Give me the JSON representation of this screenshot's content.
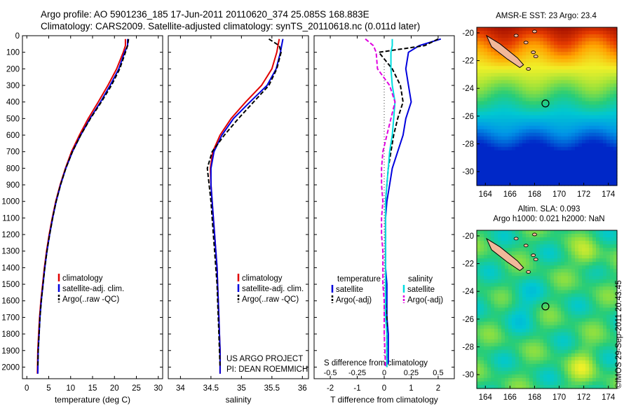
{
  "header": {
    "line1": "Argo profile: AO 5901236_185 17-Jun-2011 20110620_374 25.085S 168.883E",
    "line2": "Climatology: CARS2009. Satellite-adjusted climatology: synTS_20110618.nc (0.011d later)"
  },
  "side_label": "©IMOS 29-Sep-2011 20:43:45",
  "chart_data": [
    {
      "id": "temperature",
      "type": "line",
      "xlabel": "temperature (deg C)",
      "xlim": [
        -1,
        31
      ],
      "ylim": [
        2070,
        0
      ],
      "xticks": [
        0,
        5,
        10,
        15,
        20,
        25,
        30
      ],
      "yticks": [
        0,
        100,
        200,
        300,
        400,
        500,
        600,
        700,
        800,
        900,
        1000,
        1100,
        1200,
        1300,
        1400,
        1500,
        1600,
        1700,
        1800,
        1900,
        2000
      ],
      "legend": [
        "climatology",
        "satellite-adj. clim.",
        "Argo(..raw -QC)"
      ],
      "series": [
        {
          "name": "climatology",
          "color": "#e00000",
          "dash": "none",
          "x": [
            22.5,
            22.5,
            22.0,
            20.5,
            18.5,
            16.3,
            14.0,
            12.0,
            10.2,
            8.8,
            7.6,
            6.6,
            5.8,
            5.1,
            4.5,
            4.0,
            3.6,
            3.2,
            2.9,
            2.7,
            2.5,
            2.4
          ],
          "y": [
            20,
            60,
            100,
            200,
            300,
            400,
            500,
            600,
            700,
            800,
            900,
            1000,
            1100,
            1200,
            1300,
            1400,
            1500,
            1600,
            1700,
            1800,
            1900,
            2040
          ]
        },
        {
          "name": "satellite-adj. clim.",
          "color": "#0000dd",
          "dash": "none",
          "x": [
            23.0,
            23.0,
            22.3,
            21.0,
            19.0,
            16.8,
            14.4,
            12.3,
            10.4,
            8.9,
            7.7,
            6.7,
            5.9,
            5.2,
            4.6,
            4.1,
            3.7,
            3.3,
            3.0,
            2.8,
            2.6,
            2.5
          ],
          "y": [
            20,
            60,
            100,
            200,
            300,
            400,
            500,
            600,
            700,
            800,
            900,
            1000,
            1100,
            1200,
            1300,
            1400,
            1500,
            1600,
            1700,
            1800,
            1900,
            2040
          ]
        },
        {
          "name": "Argo(..raw -QC)",
          "color": "#000000",
          "dash": "6,3",
          "x": [
            23.2,
            23.0,
            22.5,
            21.2,
            19.3,
            17.0,
            14.5,
            12.3,
            10.4,
            8.9,
            7.7,
            6.7,
            5.9,
            5.2,
            4.6,
            4.1,
            3.7,
            3.3,
            3.0,
            2.8,
            2.6,
            2.5
          ],
          "y": [
            20,
            60,
            100,
            200,
            300,
            400,
            500,
            600,
            700,
            800,
            900,
            1000,
            1100,
            1200,
            1300,
            1400,
            1500,
            1600,
            1700,
            1800,
            1900,
            2000
          ]
        }
      ]
    },
    {
      "id": "salinity",
      "type": "line",
      "xlabel": "salinity",
      "xlim": [
        33.8,
        36.1
      ],
      "ylim": [
        2070,
        0
      ],
      "xticks": [
        34,
        34.5,
        35,
        35.5,
        36
      ],
      "legend": [
        "climatology",
        "satellite-adj. clim.",
        "Argo(..raw -QC)"
      ],
      "annotation": [
        "US ARGO PROJECT",
        "PI: DEAN ROEMMICH"
      ],
      "series": [
        {
          "name": "climatology",
          "color": "#e00000",
          "dash": "none",
          "x": [
            35.62,
            35.6,
            35.58,
            35.5,
            35.33,
            35.07,
            34.83,
            34.65,
            34.53,
            34.49,
            34.5,
            34.52,
            34.54,
            34.56,
            34.58,
            34.6,
            34.61,
            34.62,
            34.63,
            34.64,
            34.65,
            34.65
          ],
          "y": [
            20,
            60,
            100,
            200,
            300,
            400,
            500,
            600,
            700,
            800,
            900,
            1000,
            1100,
            1200,
            1300,
            1400,
            1500,
            1600,
            1700,
            1800,
            1900,
            2040
          ]
        },
        {
          "name": "satellite-adj. clim.",
          "color": "#0000dd",
          "dash": "none",
          "x": [
            35.68,
            35.66,
            35.64,
            35.57,
            35.42,
            35.14,
            34.87,
            34.68,
            34.55,
            34.5,
            34.5,
            34.52,
            34.54,
            34.56,
            34.58,
            34.6,
            34.61,
            34.62,
            34.63,
            34.64,
            34.65,
            34.65
          ],
          "y": [
            20,
            60,
            100,
            200,
            300,
            400,
            500,
            600,
            700,
            800,
            900,
            1000,
            1100,
            1200,
            1300,
            1400,
            1500,
            1600,
            1700,
            1800,
            1900,
            2040
          ]
        },
        {
          "name": "Argo(..raw -QC)",
          "color": "#000000",
          "dash": "6,3",
          "x": [
            35.45,
            35.62,
            35.65,
            35.58,
            35.45,
            35.2,
            34.95,
            34.72,
            34.52,
            34.44,
            34.47,
            34.5,
            34.52,
            34.54,
            34.56,
            34.58,
            34.6,
            34.61,
            34.62,
            34.63,
            34.64,
            34.65
          ],
          "y": [
            20,
            60,
            100,
            200,
            300,
            400,
            500,
            600,
            700,
            800,
            900,
            1000,
            1100,
            1200,
            1300,
            1400,
            1500,
            1600,
            1700,
            1800,
            1900,
            2000
          ]
        }
      ]
    },
    {
      "id": "difference",
      "type": "line",
      "xlabel": "T difference from climatology",
      "xlabel_top": "S difference from climatology",
      "xlim": [
        -2.6,
        2.6
      ],
      "ylim": [
        2070,
        0
      ],
      "xticks": [
        -2,
        -1,
        0,
        1,
        2
      ],
      "xtick_labels": [
        "-2",
        "-1",
        "0",
        "1",
        "2"
      ],
      "sticks": [
        "-0.5",
        "-0.25",
        "0",
        "0.25",
        "0.5"
      ],
      "legend_groups": [
        {
          "title": "temperature",
          "items": [
            "satellite",
            "Argo(-adj)"
          ]
        },
        {
          "title": "salinity",
          "items": [
            "satellite",
            "Argo(-adj)"
          ]
        }
      ],
      "series": [
        {
          "name": "temperature satellite",
          "color": "#0000dd",
          "dash": "none",
          "x": [
            2.1,
            1.3,
            0.9,
            0.8,
            0.9,
            1.0,
            0.8,
            0.7,
            0.5,
            0.3,
            0.2,
            0.1,
            0.05,
            0.05,
            0.05,
            0.05,
            0.1,
            0.1,
            0.1,
            0.15,
            0.15
          ],
          "y": [
            20,
            60,
            100,
            200,
            300,
            400,
            500,
            600,
            700,
            800,
            900,
            1000,
            1100,
            1200,
            1300,
            1400,
            1500,
            1600,
            1700,
            1800,
            1980
          ]
        },
        {
          "name": "temperature Argo(-adj)",
          "color": "#000000",
          "dash": "6,3",
          "x": [
            2.0,
            1.5,
            -0.2,
            0.3,
            0.6,
            0.7,
            0.5,
            0.35,
            0.25,
            0.15,
            0.1,
            0.05,
            0.05,
            0.05,
            0.05,
            0.05,
            0.05,
            0.05,
            0.1,
            0.1,
            0.1
          ],
          "y": [
            20,
            60,
            100,
            200,
            300,
            400,
            500,
            600,
            700,
            800,
            900,
            1000,
            1100,
            1200,
            1300,
            1400,
            1500,
            1600,
            1700,
            1800,
            2000
          ]
        },
        {
          "name": "salinity satellite",
          "color": "#00dde0",
          "dash": "none",
          "x": [
            0.3,
            0.3,
            0.25,
            0.25,
            0.3,
            0.4,
            0.35,
            0.3,
            0.2,
            0.15,
            0.1,
            0.05,
            0.05,
            0.05,
            0.05,
            0.05,
            0.05,
            0.05,
            0.05,
            0.1,
            0.1
          ],
          "y": [
            20,
            60,
            100,
            200,
            300,
            400,
            500,
            600,
            700,
            800,
            900,
            1000,
            1100,
            1200,
            1300,
            1400,
            1500,
            1600,
            1700,
            1800,
            2000
          ]
        },
        {
          "name": "salinity Argo(-adj)",
          "color": "#e000e0",
          "dash": "6,3",
          "x": [
            -0.7,
            -0.4,
            -0.3,
            -0.25,
            0.2,
            0.4,
            0.25,
            0.1,
            -0.05,
            -0.1,
            -0.1,
            -0.05,
            -0.1,
            -0.1,
            -0.05,
            -0.05,
            -0.05,
            0.0,
            0.0,
            0.0,
            0.05
          ],
          "y": [
            20,
            60,
            100,
            200,
            300,
            400,
            500,
            600,
            700,
            800,
            900,
            1000,
            1100,
            1200,
            1300,
            1400,
            1500,
            1600,
            1700,
            1800,
            2000
          ]
        }
      ]
    },
    {
      "id": "map_sst",
      "type": "heatmap",
      "title": "AMSR-E SST: 23 Argo: 23.4",
      "xlim": [
        163.3,
        174.7
      ],
      "ylim": [
        -31,
        -19.6
      ],
      "xticks": [
        164,
        166,
        168,
        170,
        172,
        174
      ],
      "yticks": [
        -20,
        -22,
        -24,
        -26,
        -28,
        -30
      ],
      "marker": {
        "lon": 168.883,
        "lat": -25.085
      }
    },
    {
      "id": "map_sla",
      "type": "heatmap",
      "title": "Altim. SLA: 0.093",
      "subtitle": "Argo h1000: 0.021 h2000: NaN",
      "xlim": [
        163.3,
        174.7
      ],
      "ylim": [
        -31,
        -19.6
      ],
      "xticks": [
        164,
        166,
        168,
        170,
        172,
        174
      ],
      "yticks": [
        -20,
        -22,
        -24,
        -26,
        -28,
        -30
      ],
      "marker": {
        "lon": 168.883,
        "lat": -25.085
      }
    }
  ]
}
